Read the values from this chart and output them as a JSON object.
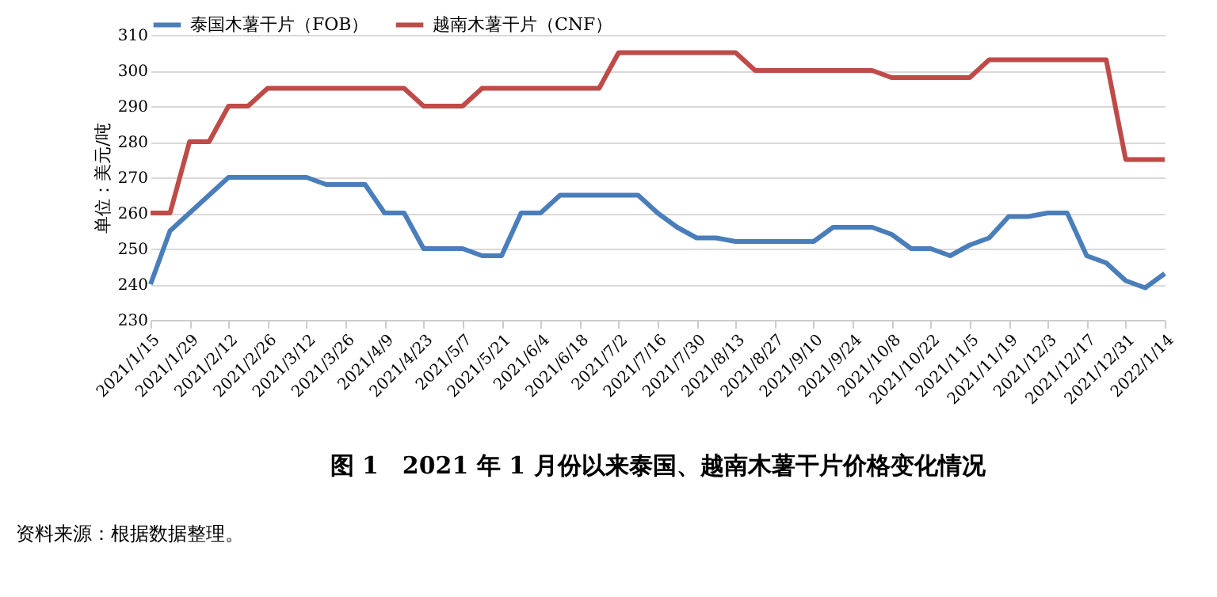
{
  "chart_data": {
    "type": "line",
    "title": "图 1　2021 年 1 月份以来泰国、越南木薯干片价格变化情况",
    "ylabel": "单位：美元/吨",
    "annotations": [
      "资料来源：根据数据整理。"
    ],
    "categories": [
      "2021/1/15",
      null,
      "2021/1/29",
      null,
      "2021/2/12",
      null,
      "2021/2/26",
      null,
      "2021/3/12",
      null,
      "2021/3/26",
      null,
      "2021/4/9",
      null,
      "2021/4/23",
      null,
      "2021/5/7",
      null,
      "2021/5/21",
      null,
      "2021/6/4",
      null,
      "2021/6/18",
      null,
      "2021/7/2",
      null,
      "2021/7/16",
      null,
      "2021/7/30",
      null,
      "2021/8/13",
      null,
      "2021/8/27",
      null,
      "2021/9/10",
      null,
      "2021/9/24",
      null,
      "2021/10/8",
      null,
      "2021/10/22",
      null,
      "2021/11/5",
      null,
      "2021/11/19",
      null,
      "2021/12/3",
      null,
      "2021/12/17",
      null,
      "2021/12/31",
      null,
      "2022/1/14"
    ],
    "series": [
      {
        "name": "泰国木薯干片（FOB）",
        "color": "#4a7ebb",
        "values": [
          240,
          255,
          260,
          265,
          270,
          270,
          270,
          270,
          270,
          268,
          268,
          268,
          260,
          260,
          250,
          250,
          250,
          248,
          248,
          260,
          260,
          265,
          265,
          265,
          265,
          265,
          260,
          256,
          253,
          253,
          252,
          252,
          252,
          252,
          252,
          256,
          256,
          256,
          254,
          250,
          250,
          248,
          251,
          253,
          259,
          259,
          260,
          260,
          248,
          246,
          241,
          239,
          243
        ]
      },
      {
        "name": "越南木薯干片（CNF）",
        "color": "#be4b48",
        "values": [
          260,
          260,
          280,
          280,
          290,
          290,
          295,
          295,
          295,
          295,
          295,
          295,
          295,
          295,
          290,
          290,
          290,
          295,
          295,
          295,
          295,
          295,
          295,
          295,
          305,
          305,
          305,
          305,
          305,
          305,
          305,
          300,
          300,
          300,
          300,
          300,
          300,
          300,
          298,
          298,
          298,
          298,
          298,
          303,
          303,
          303,
          303,
          303,
          303,
          303,
          275,
          275,
          275
        ]
      }
    ],
    "ylim": [
      230,
      310
    ],
    "yticks": [
      230,
      240,
      250,
      260,
      270,
      280,
      290,
      300,
      310
    ],
    "grid": "y",
    "legend": "top",
    "marker": "none",
    "line_style": "solid"
  }
}
